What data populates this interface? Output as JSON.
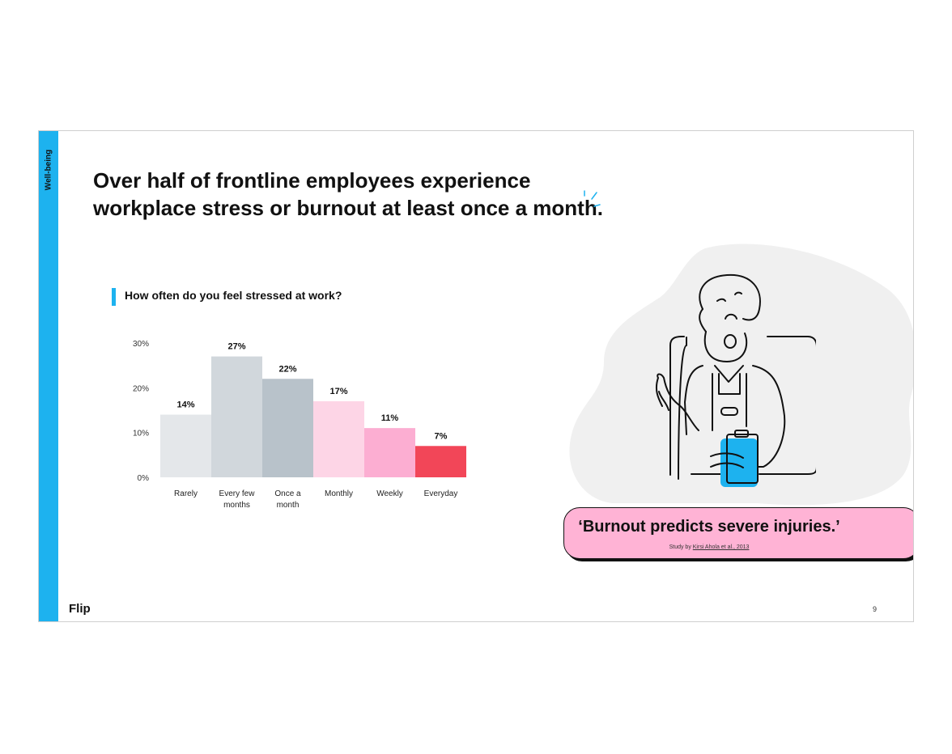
{
  "side_tab": {
    "label": "Well-being"
  },
  "title": {
    "line1": "Over half of frontline employees experience",
    "line2": "workplace stress or burnout at least once a month."
  },
  "chart_heading": "How often do you feel stressed at work?",
  "chart_data": {
    "type": "bar",
    "title": "How often do you feel stressed at work?",
    "categories": [
      "Rarely",
      "Every few months",
      "Once a month",
      "Monthly",
      "Weekly",
      "Everyday"
    ],
    "category_lines": [
      [
        "Rarely"
      ],
      [
        "Every few",
        "months"
      ],
      [
        "Once a",
        "month"
      ],
      [
        "Monthly"
      ],
      [
        "Weekly"
      ],
      [
        "Everyday"
      ]
    ],
    "values": [
      14,
      27,
      22,
      17,
      11,
      7
    ],
    "value_labels": [
      "14%",
      "27%",
      "22%",
      "17%",
      "11%",
      "7%"
    ],
    "colors": [
      "#e4e7ea",
      "#d1d7dc",
      "#b8c2ca",
      "#fdd5e6",
      "#fcaed2",
      "#f24658"
    ],
    "y_ticks": [
      0,
      10,
      20,
      30
    ],
    "y_tick_labels": [
      "0%",
      "10%",
      "20%",
      "30%"
    ],
    "ylim": [
      0,
      30
    ],
    "grid": false,
    "xlabel": "",
    "ylabel": ""
  },
  "quote": {
    "text": "‘Burnout predicts severe injuries.’",
    "source_prefix": "Study by ",
    "source_link": "Kirsi Ahola et al., 2013"
  },
  "footer": {
    "brand": "Flip",
    "page_number": "9"
  },
  "colors": {
    "accent": "#1db2ef",
    "pink": "#ffb3d5",
    "red": "#f24658"
  }
}
